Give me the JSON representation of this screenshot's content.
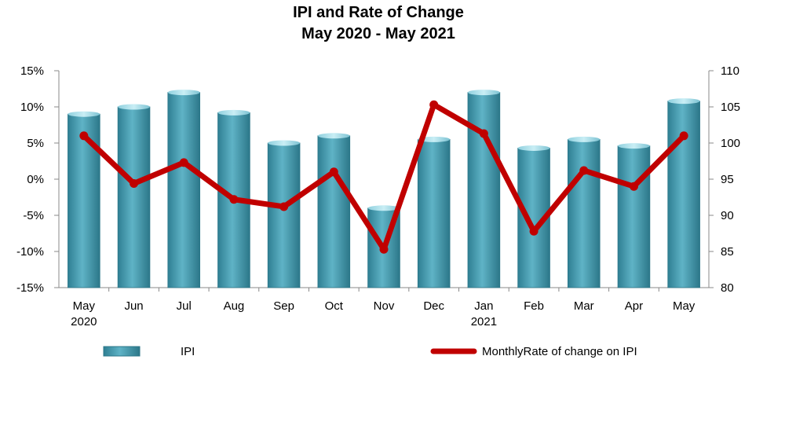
{
  "chart_data": {
    "type": "bar+line",
    "title": "IPI and Rate of Change",
    "subtitle": "May 2020 - May 2021",
    "categories": [
      "May",
      "Jun",
      "Jul",
      "Aug",
      "Sep",
      "Oct",
      "Nov",
      "Dec",
      "Jan",
      "Feb",
      "Mar",
      "Apr",
      "May"
    ],
    "category_sublabels": [
      "2020",
      "",
      "",
      "",
      "",
      "",
      "",
      "",
      "2021",
      "",
      "",
      "",
      ""
    ],
    "series": [
      {
        "name": "IPI",
        "type": "bar",
        "axis": "right",
        "color": "#4a9db0",
        "values": [
          104,
          105,
          107,
          104.2,
          100,
          101,
          91,
          100.5,
          107,
          99.3,
          100.5,
          99.6,
          105.8
        ]
      },
      {
        "name": "MonthlyRate of change on IPI",
        "type": "line",
        "axis": "left",
        "color": "#c00000",
        "values": [
          0.06,
          -0.006,
          0.023,
          -0.028,
          -0.038,
          0.01,
          -0.097,
          0.103,
          0.063,
          -0.072,
          0.012,
          -0.01,
          0.06
        ]
      }
    ],
    "y_left": {
      "min": -0.15,
      "max": 0.15,
      "ticks": [
        "15%",
        "10%",
        "5%",
        "0%",
        "-5%",
        "-10%",
        "-15%"
      ]
    },
    "y_right": {
      "min": 80,
      "max": 110,
      "ticks": [
        "110",
        "105",
        "100",
        "95",
        "90",
        "85",
        "80"
      ]
    },
    "grid": false,
    "legend_position": "bottom"
  }
}
